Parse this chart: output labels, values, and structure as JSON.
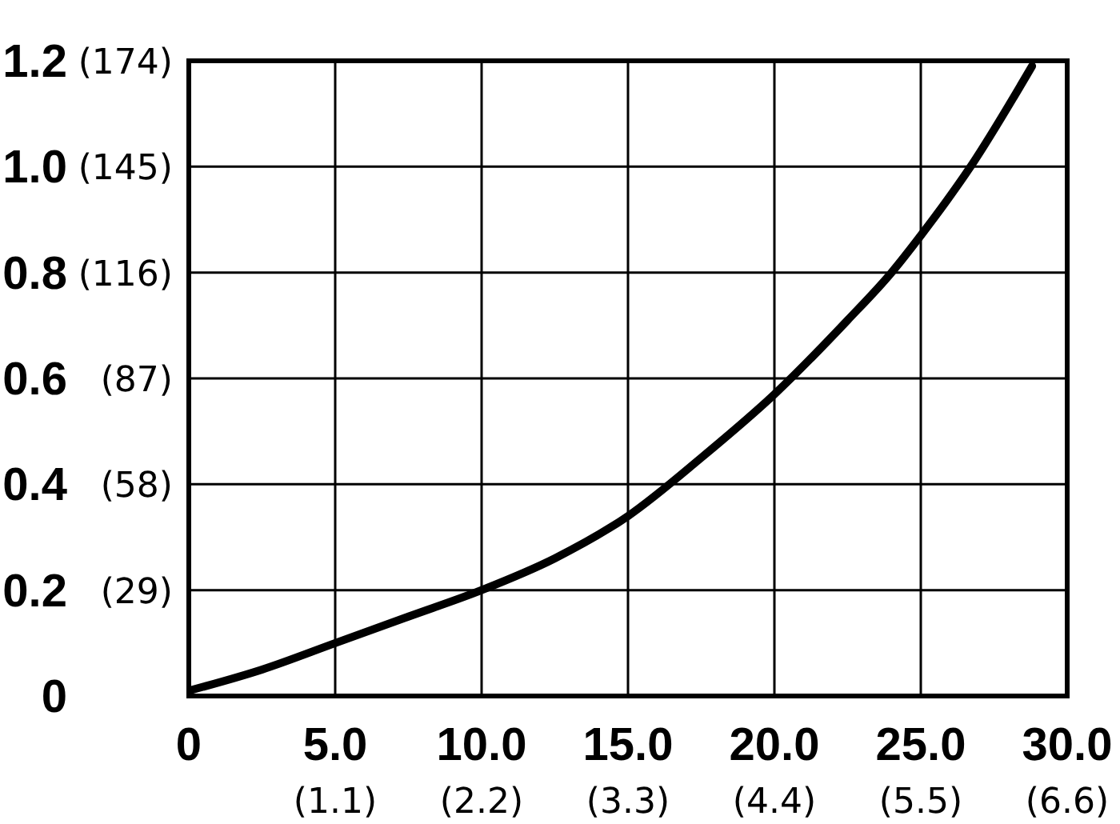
{
  "chart_data": {
    "type": "line",
    "x": [
      0,
      2.5,
      5,
      7.5,
      10,
      12.5,
      15,
      17.5,
      20,
      22.5,
      24,
      25,
      26.7,
      28.8
    ],
    "series": [
      {
        "color": "#000000",
        "values": [
          0.01,
          0.05,
          0.1,
          0.15,
          0.2,
          0.26,
          0.34,
          0.45,
          0.57,
          0.71,
          0.8,
          0.87,
          1.0,
          1.19
        ]
      }
    ],
    "xlim": [
      0,
      30
    ],
    "xticks": [
      0,
      {
        "value": 5,
        "label": "5.0"
      },
      {
        "value": 10,
        "label": "10.0"
      },
      {
        "value": 15,
        "label": "15.0"
      },
      {
        "value": 20,
        "label": "20.0"
      },
      {
        "value": 25,
        "label": "25.0"
      },
      {
        "value": 30,
        "label": "30.0"
      }
    ],
    "x2lim": [
      0,
      6.6
    ],
    "x2ticks": [
      {
        "value": 1.1,
        "label": "(1.1)"
      },
      {
        "value": 2.2,
        "label": "(2.2)"
      },
      {
        "value": 3.3,
        "label": "(3.3)"
      },
      {
        "value": 4.4,
        "label": "(4.4)"
      },
      {
        "value": 5.5,
        "label": "(5.5)"
      },
      {
        "value": 6.6,
        "label": "(6.6)"
      }
    ],
    "ylim": [
      0,
      1.2
    ],
    "yticks": [
      0,
      0.2,
      0.4,
      0.6,
      0.8,
      {
        "value": 1,
        "label": "1.0"
      },
      1.2
    ],
    "y2lim": [
      0,
      174
    ],
    "y2ticks": [
      {
        "value": 29,
        "label": "(29)"
      },
      {
        "value": 58,
        "label": "(58)"
      },
      {
        "value": 87,
        "label": "(87)"
      },
      {
        "value": 116,
        "label": "(116)"
      },
      {
        "value": 145,
        "label": "(145)"
      },
      {
        "value": 174,
        "label": "(174)"
      }
    ],
    "grid": true,
    "marker": "none",
    "line_style": "solid"
  }
}
